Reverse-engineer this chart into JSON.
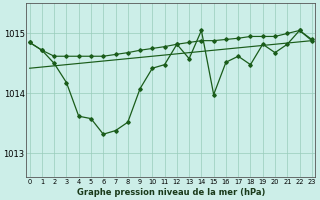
{
  "title": "Graphe pression niveau de la mer (hPa)",
  "bg_color": "#cceee8",
  "line_color": "#1a5c1a",
  "grid_color": "#99ccbb",
  "x_ticks": [
    0,
    1,
    2,
    3,
    4,
    5,
    6,
    7,
    8,
    9,
    10,
    11,
    12,
    13,
    14,
    15,
    16,
    17,
    18,
    19,
    20,
    21,
    22,
    23
  ],
  "ylim": [
    1012.6,
    1015.5
  ],
  "yticks": [
    1013,
    1014,
    1015
  ],
  "jagged_line": [
    1014.85,
    1014.72,
    1014.5,
    1014.18,
    1013.62,
    1013.58,
    1013.32,
    1013.38,
    1013.52,
    1014.08,
    1014.42,
    1014.48,
    1014.82,
    1014.58,
    1015.05,
    1013.98,
    1014.52,
    1014.62,
    1014.48,
    1014.82,
    1014.68,
    1014.82,
    1015.05,
    1014.88
  ],
  "upper_line": [
    1014.85,
    1014.72,
    1014.62,
    1014.62,
    1014.62,
    1014.62,
    1014.62,
    1014.65,
    1014.68,
    1014.72,
    1014.75,
    1014.78,
    1014.82,
    1014.85,
    1014.88,
    1014.88,
    1014.9,
    1014.92,
    1014.95,
    1014.95,
    1014.95,
    1015.0,
    1015.05,
    1014.9
  ],
  "lower_line_x": [
    0,
    23
  ],
  "lower_line_y": [
    1014.42,
    1014.88
  ],
  "spine_color": "#555555"
}
